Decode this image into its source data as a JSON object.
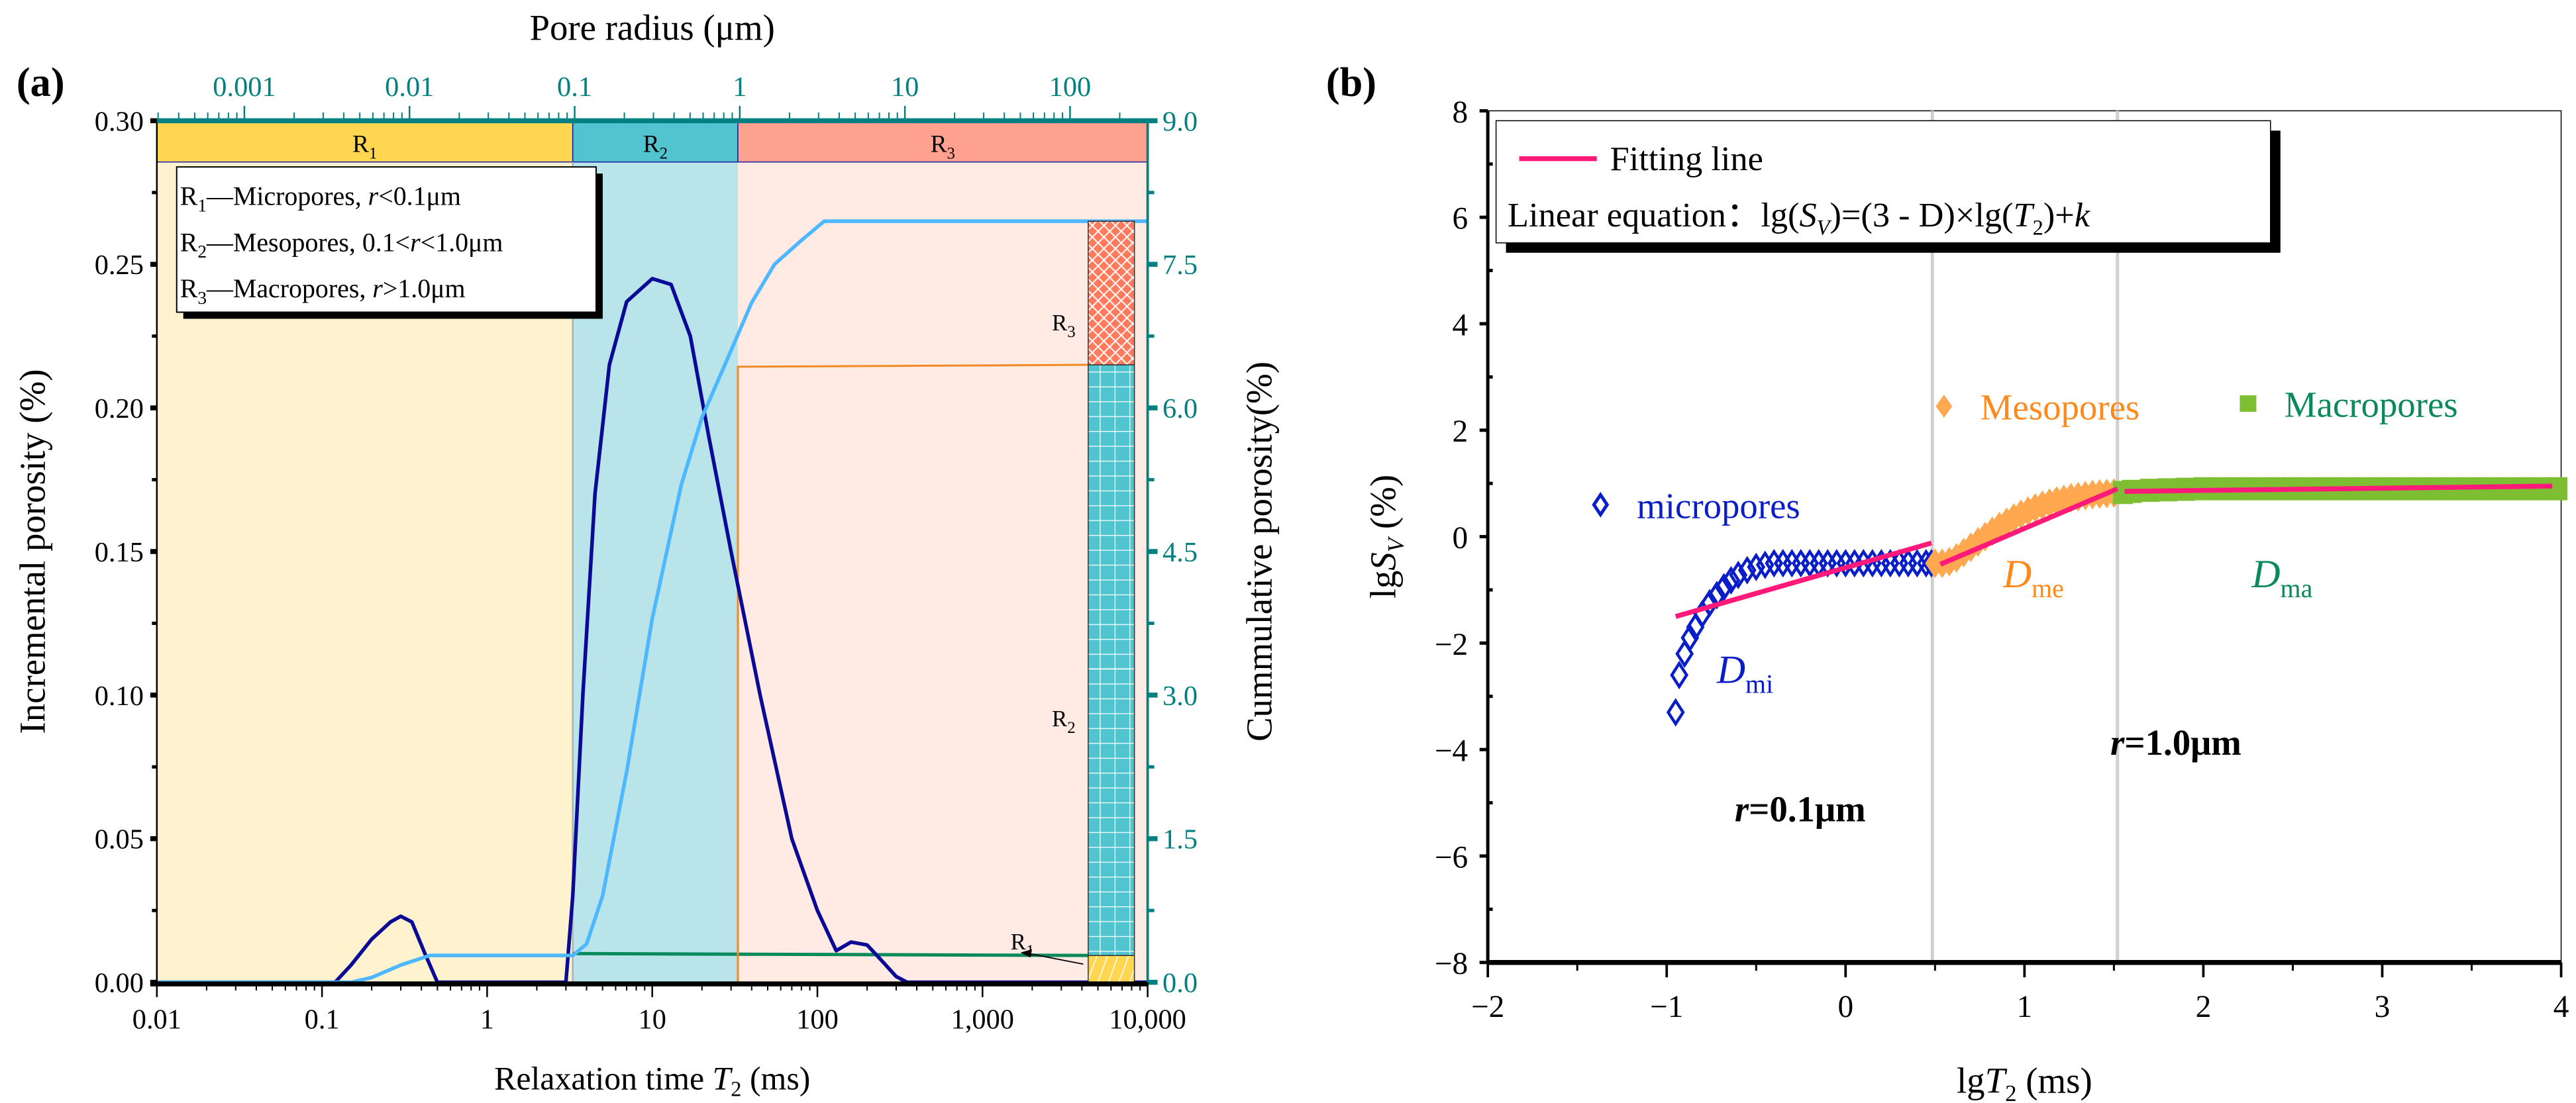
{
  "panel_labels": {
    "a": "(a)",
    "b": "(b)"
  },
  "chart_data": [
    {
      "type": "line",
      "panel": "(a)",
      "title": "",
      "xlabel": "Relaxation time T2 (ms)",
      "xlabel_parts": {
        "pre": "Relaxation time ",
        "var": "T",
        "sub": "2",
        "post": " (ms)"
      },
      "x_scale": "log",
      "xlim": [
        0.01,
        10000
      ],
      "x_ticks": [
        0.01,
        0.1,
        1,
        10,
        100,
        1000,
        10000
      ],
      "x_tick_labels": [
        "0.01",
        "0.1",
        "1",
        "10",
        "100",
        "1,000",
        "10,000"
      ],
      "top_xlabel": "Pore radius (μm)",
      "top_x_ticks": [
        0.001,
        0.01,
        0.1,
        1,
        10,
        100
      ],
      "top_x_tick_labels": [
        "0.001",
        "0.01",
        "0.1",
        "1",
        "10",
        "100"
      ],
      "top_xlim": [
        0.0003,
        300
      ],
      "radius_to_T2_factor": 33,
      "ylabel": "Incremental porosity (%)",
      "ylim": [
        0,
        0.3
      ],
      "y_ticks": [
        0,
        0.05,
        0.1,
        0.15,
        0.2,
        0.25,
        0.3
      ],
      "y_tick_labels": [
        "0.00",
        "0.05",
        "0.10",
        "0.15",
        "0.20",
        "0.25",
        "0.30"
      ],
      "y2label": "Cummulative porosity(%)",
      "y2lim": [
        0,
        9.0
      ],
      "y2_ticks": [
        0,
        1.5,
        3.0,
        4.5,
        6.0,
        7.5,
        9.0
      ],
      "y2_tick_labels": [
        "0.0",
        "1.5",
        "3.0",
        "4.5",
        "6.0",
        "7.5",
        "9.0"
      ],
      "regions": [
        {
          "name": "R1",
          "label": "R",
          "sub": "1",
          "from": 0.01,
          "to": 3.3,
          "band": "#FFD64F",
          "bg": "#FFF2CE"
        },
        {
          "name": "R2",
          "label": "R",
          "sub": "2",
          "from": 3.3,
          "to": 33,
          "band": "#52C4CF",
          "bg": "#B8E4EA"
        },
        {
          "name": "R3",
          "label": "R",
          "sub": "3",
          "from": 33,
          "to": 10000,
          "band": "#FFA18E",
          "bg": "#FFEBE3"
        }
      ],
      "legend": [
        {
          "r": "R",
          "sub": "1",
          "text": "—Micropores, ",
          "var": "r",
          "cond": "<0.1μm"
        },
        {
          "r": "R",
          "sub": "2",
          "text": "—Mesopores, 0.1<",
          "var": "r",
          "cond": "<1.0μm"
        },
        {
          "r": "R",
          "sub": "3",
          "text": "—Macropores, ",
          "var": "r",
          "cond": ">1.0μm"
        }
      ],
      "series": [
        {
          "name": "Incremental porosity",
          "axis": "left",
          "color": "#0A0A96",
          "x": [
            0.01,
            0.12,
            0.15,
            0.2,
            0.26,
            0.3,
            0.35,
            0.42,
            0.5,
            3.0,
            3.3,
            3.8,
            4.5,
            5.5,
            7,
            10,
            13,
            17,
            22,
            30,
            45,
            70,
            100,
            130,
            160,
            200,
            250,
            300,
            350,
            10000
          ],
          "y": [
            0,
            0,
            0.006,
            0.015,
            0.021,
            0.023,
            0.021,
            0.01,
            0,
            0,
            0.03,
            0.1,
            0.17,
            0.215,
            0.237,
            0.245,
            0.243,
            0.225,
            0.19,
            0.15,
            0.1,
            0.05,
            0.025,
            0.011,
            0.014,
            0.013,
            0.007,
            0.002,
            0,
            0
          ]
        },
        {
          "name": "Cumulative porosity",
          "axis": "right",
          "color": "#4DB8FF",
          "x": [
            0.01,
            0.15,
            0.2,
            0.3,
            0.45,
            3.3,
            4,
            5,
            7,
            10,
            15,
            20,
            30,
            40,
            55,
            80,
            110,
            10000
          ],
          "y": [
            0,
            0,
            0.05,
            0.18,
            0.28,
            0.28,
            0.4,
            0.9,
            2.2,
            3.8,
            5.2,
            5.9,
            6.6,
            7.1,
            7.5,
            7.75,
            7.95,
            7.95
          ]
        }
      ],
      "stacked_bar": {
        "segments": [
          {
            "name": "R1",
            "label": "R",
            "sub": "1",
            "from": 0,
            "to": 0.28,
            "color": "#FFD64F"
          },
          {
            "name": "R2",
            "label": "R",
            "sub": "2",
            "from": 0.28,
            "to": 6.45,
            "color": "#52C4CF"
          },
          {
            "name": "R3",
            "label": "R",
            "sub": "3",
            "from": 6.45,
            "to": 7.95,
            "color": "#FF7A5C"
          }
        ]
      },
      "guide_lines": {
        "r1_level": 0.28,
        "r12_level": 6.45,
        "green": "#0A8A5A",
        "orange": "#F08A24"
      }
    },
    {
      "type": "scatter",
      "panel": "(b)",
      "title": "",
      "xlabel_parts": {
        "pre": "lg",
        "var": "T",
        "sub": "2",
        "post": " (ms)"
      },
      "ylabel_parts": {
        "pre": "lg",
        "var": "S",
        "sub": "V",
        "post": " (%)"
      },
      "xlim": [
        -2,
        4
      ],
      "ylim": [
        -8,
        8
      ],
      "x_ticks": [
        -2,
        -1,
        0,
        1,
        2,
        3,
        4
      ],
      "x_tick_labels": [
        "−2",
        "−1",
        "0",
        "1",
        "2",
        "3",
        "4"
      ],
      "y_ticks": [
        -8,
        -6,
        -4,
        -2,
        0,
        2,
        4,
        6,
        8
      ],
      "y_tick_labels": [
        "−8",
        "−6",
        "−4",
        "−2",
        "0",
        "2",
        "4",
        "6",
        "8"
      ],
      "vertical_lines": [
        0.485,
        1.52
      ],
      "legend": {
        "fit_label": "Fitting line",
        "equation_prefix": "Linear equation：",
        "equation_parts": [
          "lg(",
          "S",
          "V",
          ")=(3 - D)×lg(",
          "T",
          "2",
          ")+",
          "k"
        ]
      },
      "annotations": [
        {
          "text": "r",
          "rest": "=0.1μm",
          "x": -0.62,
          "y": -5.35
        },
        {
          "text": "r",
          "rest": "=1.0μm",
          "x": 1.48,
          "y": -4.1
        }
      ],
      "series": [
        {
          "name": "micropores",
          "marker": "diamond-open",
          "color": "#0A1EC8",
          "label_x": -1.37,
          "label_y": 0.6,
          "d_label": "D",
          "d_sub": "mi",
          "d_x": -0.72,
          "d_y": -2.75,
          "x": [
            -0.95,
            -0.93,
            -0.9,
            -0.87,
            -0.84,
            -0.8,
            -0.76,
            -0.72,
            -0.68,
            -0.64,
            -0.6,
            -0.55,
            -0.5,
            -0.45,
            -0.4,
            -0.35,
            -0.3,
            -0.25,
            -0.2,
            -0.15,
            -0.1,
            -0.05,
            0,
            0.05,
            0.1,
            0.15,
            0.2,
            0.25,
            0.3,
            0.35,
            0.4,
            0.45,
            0.48
          ],
          "y": [
            -3.3,
            -2.6,
            -2.2,
            -1.9,
            -1.7,
            -1.45,
            -1.25,
            -1.1,
            -0.95,
            -0.82,
            -0.72,
            -0.63,
            -0.57,
            -0.53,
            -0.5,
            -0.5,
            -0.5,
            -0.5,
            -0.5,
            -0.5,
            -0.5,
            -0.5,
            -0.5,
            -0.5,
            -0.5,
            -0.5,
            -0.5,
            -0.5,
            -0.5,
            -0.5,
            -0.5,
            -0.5,
            -0.5
          ]
        },
        {
          "name": "Mesopores",
          "marker": "diamond-filled",
          "color": "#FFA850",
          "text_color": "#FF8A1A",
          "label_x": 0.55,
          "label_y": 2.45,
          "d_label": "D",
          "d_sub": "me",
          "d_x": 0.88,
          "d_y": -0.95,
          "x": [
            0.5,
            0.54,
            0.58,
            0.62,
            0.66,
            0.7,
            0.74,
            0.78,
            0.82,
            0.86,
            0.9,
            0.94,
            0.98,
            1.02,
            1.06,
            1.1,
            1.14,
            1.18,
            1.22,
            1.26,
            1.3,
            1.34,
            1.38,
            1.42,
            1.46,
            1.5
          ],
          "y": [
            -0.5,
            -0.5,
            -0.47,
            -0.4,
            -0.3,
            -0.2,
            -0.1,
            0,
            0.1,
            0.19,
            0.27,
            0.35,
            0.42,
            0.48,
            0.54,
            0.59,
            0.63,
            0.67,
            0.7,
            0.73,
            0.75,
            0.77,
            0.79,
            0.8,
            0.81,
            0.82
          ]
        },
        {
          "name": "Macropores",
          "marker": "square-filled",
          "color": "#7DBE32",
          "text_color": "#0A8A5A",
          "label_x": 2.25,
          "label_y": 2.5,
          "d_label": "D",
          "d_sub": "ma",
          "d_x": 2.27,
          "d_y": -0.95,
          "x": [
            1.55,
            1.6,
            1.7,
            1.8,
            1.9,
            2.0,
            2.1,
            2.2,
            2.3,
            2.4,
            2.5,
            2.6,
            2.7,
            2.8,
            2.9,
            3.0,
            3.1,
            3.2,
            3.3,
            3.4,
            3.5,
            3.6,
            3.7,
            3.8,
            3.9,
            3.98
          ],
          "y": [
            0.83,
            0.85,
            0.87,
            0.88,
            0.89,
            0.9,
            0.9,
            0.9,
            0.9,
            0.9,
            0.9,
            0.9,
            0.9,
            0.9,
            0.9,
            0.9,
            0.9,
            0.9,
            0.9,
            0.9,
            0.9,
            0.9,
            0.9,
            0.9,
            0.9,
            0.9
          ]
        }
      ],
      "fitting_lines": {
        "color": "#FF1A7A",
        "segments": [
          [
            [
              -0.95,
              -1.5
            ],
            [
              0.48,
              -0.12
            ]
          ],
          [
            [
              0.53,
              -0.52
            ],
            [
              1.52,
              0.9
            ]
          ],
          [
            [
              1.56,
              0.85
            ],
            [
              3.95,
              0.95
            ]
          ]
        ]
      }
    }
  ]
}
